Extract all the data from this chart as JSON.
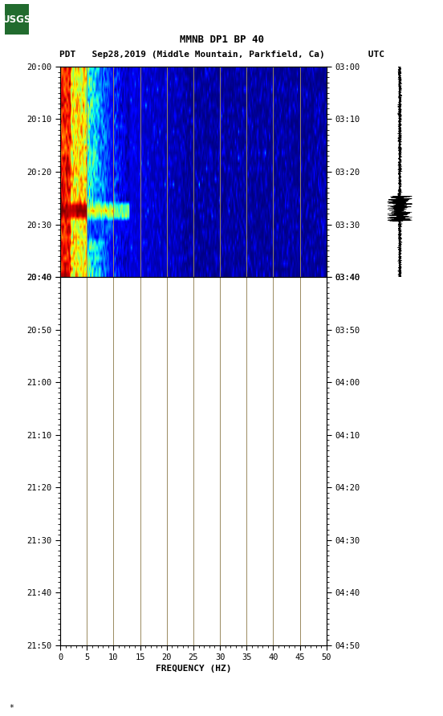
{
  "title_line1": "MMNB DP1 BP 40",
  "title_line2": "PDT   Sep28,2019 (Middle Mountain, Parkfield, Ca)        UTC",
  "xlabel": "FREQUENCY (HZ)",
  "freq_min": 0,
  "freq_max": 50,
  "freq_ticks": [
    0,
    5,
    10,
    15,
    20,
    25,
    30,
    35,
    40,
    45,
    50
  ],
  "time_labels_left": [
    "20:00",
    "20:10",
    "20:20",
    "20:30",
    "20:40",
    "20:50",
    "21:00",
    "21:10",
    "21:20",
    "21:30",
    "21:40",
    "21:50"
  ],
  "time_labels_right": [
    "03:00",
    "03:10",
    "03:20",
    "03:30",
    "03:40",
    "03:50",
    "04:00",
    "04:10",
    "04:20",
    "04:30",
    "04:40",
    "04:50"
  ],
  "background_color": "#ffffff",
  "grid_color": "#9a8a60",
  "grid_lw": 0.7,
  "colormap": "jet",
  "usgs_green": "#216b2e",
  "tick_fontsize": 7.5,
  "label_fontsize": 8,
  "title_fontsize1": 9,
  "title_fontsize2": 8,
  "n_time_total": 110,
  "n_time_spec": 40,
  "n_freq": 250
}
